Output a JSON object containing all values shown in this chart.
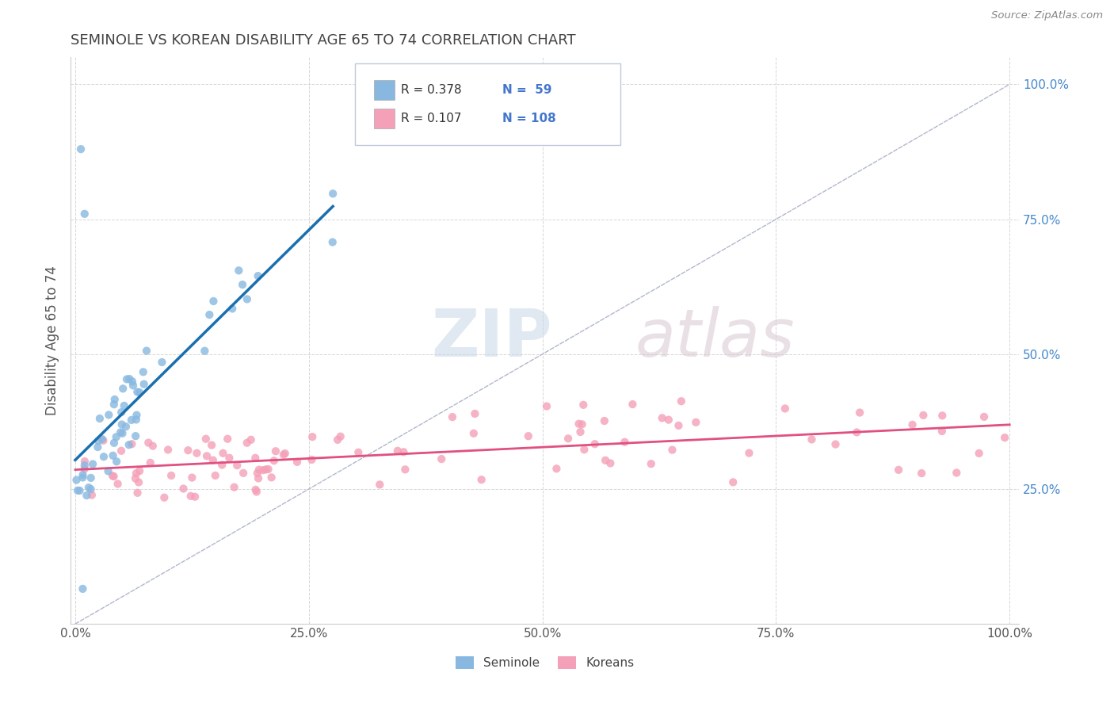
{
  "title": "SEMINOLE VS KOREAN DISABILITY AGE 65 TO 74 CORRELATION CHART",
  "source": "Source: ZipAtlas.com",
  "ylabel": "Disability Age 65 to 74",
  "xlim": [
    0.0,
    1.0
  ],
  "ylim": [
    0.0,
    1.0
  ],
  "xticks": [
    0.0,
    0.25,
    0.5,
    0.75,
    1.0
  ],
  "xticklabels": [
    "0.0%",
    "25.0%",
    "50.0%",
    "75.0%",
    "100.0%"
  ],
  "yticks": [
    0.25,
    0.5,
    0.75,
    1.0
  ],
  "yticklabels": [
    "25.0%",
    "50.0%",
    "75.0%",
    "100.0%"
  ],
  "seminole_color": "#88b8e0",
  "koreans_color": "#f4a0b8",
  "seminole_line_color": "#1a6faf",
  "koreans_line_color": "#e05080",
  "diag_line_color": "#b0b8cc",
  "R_seminole": 0.378,
  "N_seminole": 59,
  "R_koreans": 0.107,
  "N_koreans": 108,
  "watermark_zip": "ZIP",
  "watermark_atlas": "atlas",
  "legend_text_color": "#4477cc",
  "tick_color_y": "#4488cc",
  "tick_color_x": "#555555",
  "title_color": "#444444",
  "source_color": "#888888"
}
